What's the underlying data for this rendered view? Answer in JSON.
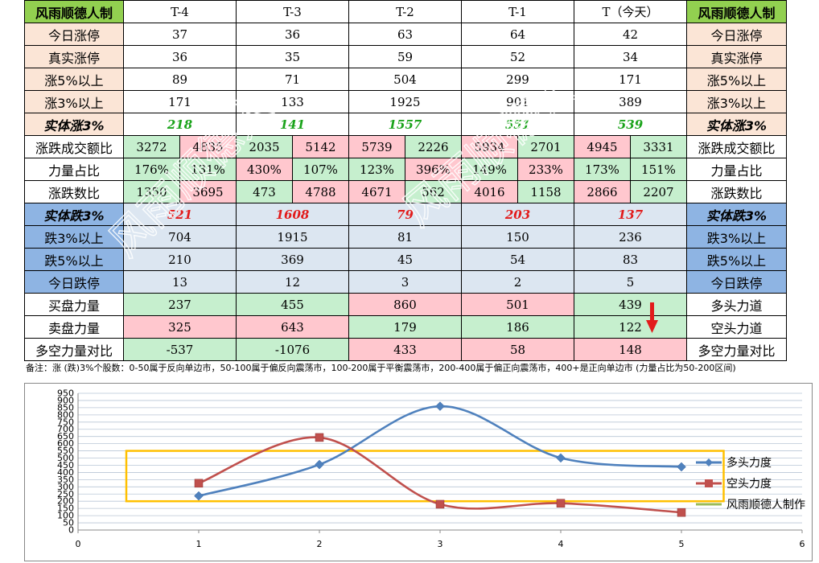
{
  "header": {
    "left": "风雨顺德人制",
    "right": "风雨顺德人制",
    "days": [
      "T-4",
      "T-3",
      "T-2",
      "T-1",
      "T（今天）"
    ]
  },
  "rows": {
    "zt": {
      "label": "今日涨停",
      "values": [
        "37",
        "36",
        "63",
        "64",
        "42"
      ]
    },
    "real_zt": {
      "label": "真实涨停",
      "values": [
        "36",
        "35",
        "59",
        "52",
        "34"
      ]
    },
    "up5": {
      "label": "涨5%以上",
      "values": [
        "89",
        "71",
        "504",
        "299",
        "171"
      ]
    },
    "up3": {
      "label": "涨3%以上",
      "values": [
        "171",
        "133",
        "1925",
        "901",
        "389"
      ]
    },
    "body_up3": {
      "label": "实体涨3%",
      "values": [
        "218",
        "141",
        "1557",
        "551",
        "539"
      ]
    },
    "turnover": {
      "label": "涨跌成交额比",
      "values": [
        "3272",
        "4835",
        "2035",
        "5142",
        "5739",
        "2226",
        "5934",
        "2701",
        "4945",
        "3331"
      ]
    },
    "power": {
      "label": "力量占比",
      "values": [
        "176%",
        "131%",
        "430%",
        "107%",
        "123%",
        "396%",
        "149%",
        "233%",
        "173%",
        "151%"
      ]
    },
    "count": {
      "label": "涨跌数比",
      "values": [
        "1350",
        "3695",
        "473",
        "4788",
        "4671",
        "562",
        "4016",
        "1158",
        "2866",
        "2207"
      ]
    },
    "body_down3": {
      "label": "实体跌3%",
      "values": [
        "521",
        "1608",
        "79",
        "203",
        "137"
      ]
    },
    "down3": {
      "label": "跌3%以上",
      "values": [
        "704",
        "1915",
        "81",
        "150",
        "236"
      ]
    },
    "down5": {
      "label": "跌5%以上",
      "values": [
        "210",
        "369",
        "45",
        "54",
        "83"
      ]
    },
    "dt": {
      "label": "今日跌停",
      "values": [
        "13",
        "12",
        "3",
        "2",
        "5"
      ]
    },
    "buy": {
      "label": "买盘力量",
      "values": [
        "237",
        "455",
        "860",
        "501",
        "439"
      ],
      "right": "多头力道"
    },
    "sell": {
      "label": "卖盘力量",
      "values": [
        "325",
        "643",
        "179",
        "186",
        "122"
      ],
      "right": "空头力道"
    },
    "diff": {
      "label": "多空力量对比",
      "values": [
        "-537",
        "-1076",
        "433",
        "58",
        "148"
      ],
      "right": "多空力量对比"
    }
  },
  "note": "备注：涨 (跌)3%个股数：0-50属于反向单边市，50-100属于偏反向震荡市，100-200属于平衡震荡市，200-400属于偏正向震荡市，400+是正向单边市 (力量占比为50-200区间)",
  "watermark_text": "风雨顺德人",
  "colors": {
    "header_green": "#92d050",
    "peach": "#fbe5d6",
    "blue": "#8eb4e3",
    "light_blue": "#dce6f1",
    "cell_green": "#c6efce",
    "cell_pink": "#ffc7ce",
    "series_bull": "#4f81bd",
    "series_bear": "#c0504d",
    "box": "#ffc000",
    "arrow": "#e21b1b"
  },
  "chart_data": {
    "type": "line",
    "x": [
      1,
      2,
      3,
      4,
      5
    ],
    "series": [
      {
        "name": "多头力度",
        "values": [
          237,
          455,
          860,
          501,
          439
        ],
        "color": "#4f81bd",
        "marker": "diamond"
      },
      {
        "name": "空头力度",
        "values": [
          325,
          643,
          179,
          186,
          122
        ],
        "color": "#c0504d",
        "marker": "square"
      }
    ],
    "legend_extra": "风雨顺德人制作",
    "xlim": [
      0,
      6
    ],
    "ylim": [
      0,
      950
    ],
    "xticks": [
      "0",
      "1",
      "2",
      "3",
      "4",
      "5",
      "6"
    ],
    "yticks": [
      "0",
      "50",
      "100",
      "150",
      "200",
      "250",
      "300",
      "350",
      "400",
      "450",
      "500",
      "550",
      "600",
      "650",
      "700",
      "750",
      "800",
      "850",
      "900",
      "950"
    ],
    "highlight_box_y": [
      200,
      550
    ],
    "highlight_box_x": [
      0.4,
      5.35
    ],
    "grid": true,
    "legend_position": "right",
    "title": "",
    "xlabel": "",
    "ylabel": ""
  }
}
